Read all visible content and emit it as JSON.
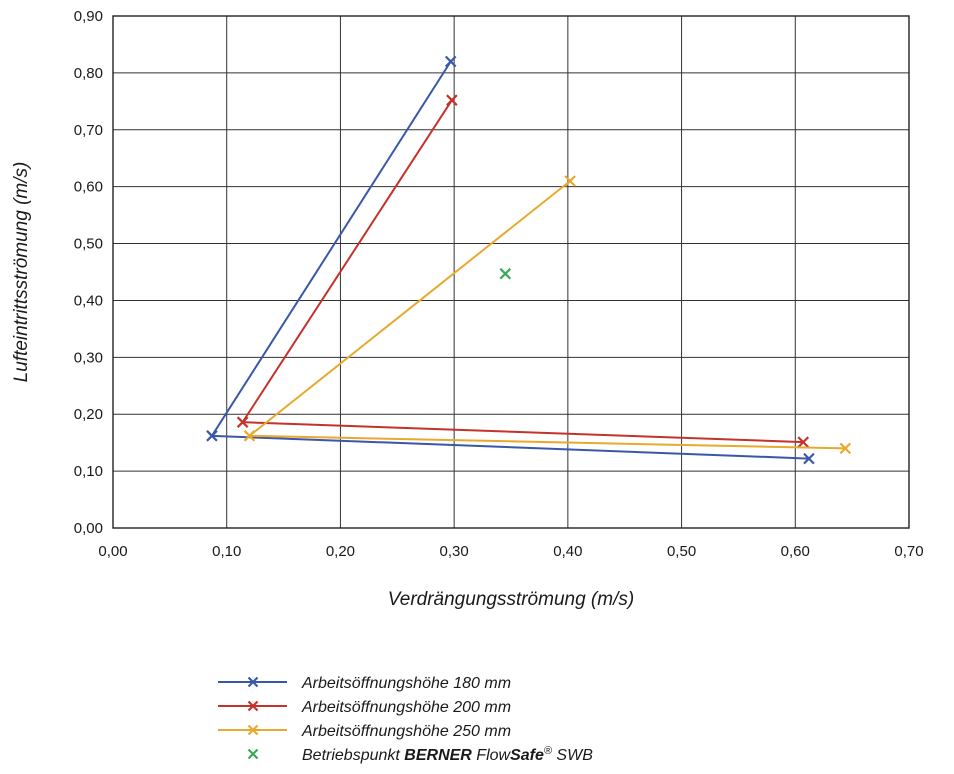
{
  "chart_data": {
    "type": "scatter",
    "xlabel": "Verdrängungsströmung (m/s)",
    "ylabel": "Lufteintrittsströmung (m/s)",
    "xlim": [
      0,
      0.7
    ],
    "ylim": [
      0,
      0.9
    ],
    "x_ticks": [
      "0,00",
      "0,10",
      "0,20",
      "0,30",
      "0,40",
      "0,50",
      "0,60",
      "0,70"
    ],
    "y_ticks": [
      "0,00",
      "0,10",
      "0,20",
      "0,30",
      "0,40",
      "0,50",
      "0,60",
      "0,70",
      "0,80",
      "0,90"
    ],
    "x_tick_values": [
      0,
      0.1,
      0.2,
      0.3,
      0.4,
      0.5,
      0.6,
      0.7
    ],
    "y_tick_values": [
      0,
      0.1,
      0.2,
      0.3,
      0.4,
      0.5,
      0.6,
      0.7,
      0.8,
      0.9
    ],
    "grid": true,
    "legend_position": "bottom",
    "series": [
      {
        "name": "Arbeitsöffnungshöhe 180 mm",
        "color": "#3a58a8",
        "marker": "x",
        "line": true,
        "points": [
          [
            0.297,
            0.82
          ],
          [
            0.087,
            0.162
          ],
          [
            0.612,
            0.122
          ]
        ]
      },
      {
        "name": "Arbeitsöffnungshöhe 200 mm",
        "color": "#c4322b",
        "marker": "x",
        "line": true,
        "points": [
          [
            0.298,
            0.752
          ],
          [
            0.114,
            0.186
          ],
          [
            0.607,
            0.151
          ]
        ]
      },
      {
        "name": "Arbeitsöffnungshöhe 250 mm",
        "color": "#e8a92e",
        "marker": "x",
        "line": true,
        "points": [
          [
            0.402,
            0.61
          ],
          [
            0.12,
            0.162
          ],
          [
            0.644,
            0.14
          ]
        ]
      },
      {
        "name": "Betriebspunkt BERNER FlowSafe® SWB",
        "color": "#3aa856",
        "marker": "x",
        "line": false,
        "points": [
          [
            0.345,
            0.447
          ]
        ]
      }
    ],
    "legend_rich": {
      "prefix": "Betriebspunkt ",
      "bold1": "BERNER",
      "mid": " Flow",
      "bold2": "Safe",
      "sup": "®",
      "suffix": " SWB"
    }
  }
}
